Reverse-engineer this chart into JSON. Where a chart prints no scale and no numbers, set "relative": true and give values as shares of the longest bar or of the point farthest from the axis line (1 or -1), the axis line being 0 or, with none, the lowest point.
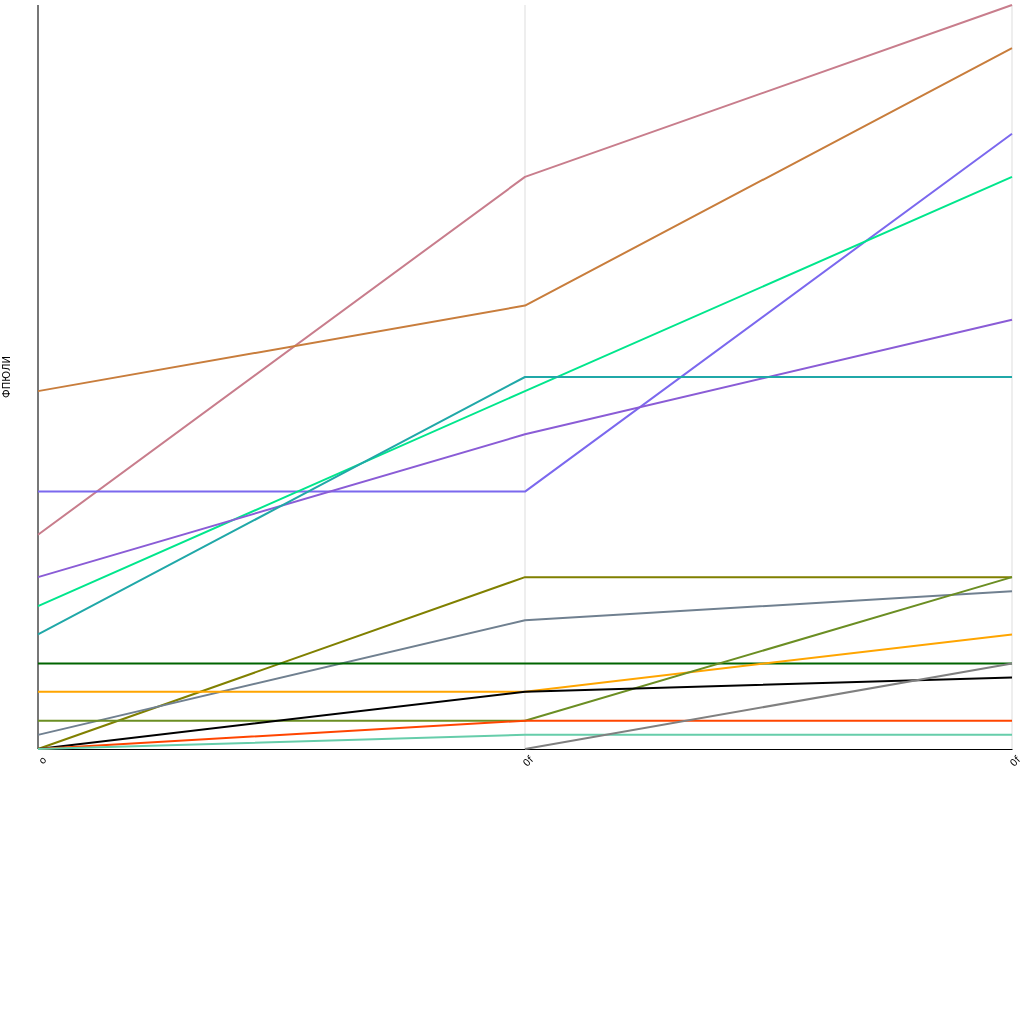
{
  "chart_data": {
    "type": "line",
    "ylabel": "ФПЮЛИ",
    "categories": [
      "o",
      "0f",
      "0f"
    ],
    "relative": true,
    "grid": "x",
    "marker": "none",
    "line_style": "solid",
    "series": [
      {
        "color": "#c87d8c",
        "values": [
          0.288,
          0.769,
          1
        ]
      },
      {
        "color": "#c87d3c",
        "values": [
          0.481,
          0.596,
          0.942
        ]
      },
      {
        "color": "#7b68ee",
        "values": [
          0.346,
          0.346,
          0.827
        ]
      },
      {
        "color": "#00e68c",
        "values": [
          0.192,
          0.481,
          0.769
        ]
      },
      {
        "color": "#8a5cd6",
        "values": [
          0.231,
          0.423,
          0.577
        ]
      },
      {
        "color": "#20a8a8",
        "values": [
          0.154,
          0.5,
          0.5
        ]
      },
      {
        "color": "#808000",
        "values": [
          0,
          0.231,
          0.231
        ]
      },
      {
        "color": "#708090",
        "values": [
          0.019,
          0.173,
          0.212
        ]
      },
      {
        "color": "#006400",
        "values": [
          0.115,
          0.115,
          0.115
        ]
      },
      {
        "color": "#ffa500",
        "values": [
          0.077,
          0.077,
          0.154
        ]
      },
      {
        "color": "#6b8e23",
        "values": [
          0.038,
          0.038,
          0.231
        ]
      },
      {
        "color": "#000000",
        "values": [
          0,
          0.077,
          0.096
        ]
      },
      {
        "color": "#ff4500",
        "values": [
          0,
          0.038,
          0.038
        ]
      },
      {
        "color": "#66cdaa",
        "values": [
          0,
          0.019,
          0.019
        ]
      },
      {
        "color": "#808080",
        "values": [
          null,
          0,
          0.115
        ]
      }
    ]
  }
}
